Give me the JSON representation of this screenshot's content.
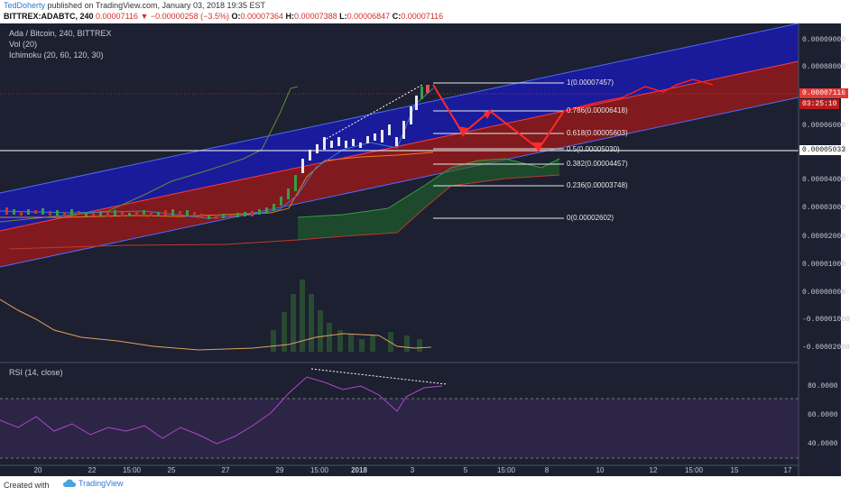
{
  "header": {
    "author": "TedDoherty",
    "published_text": " published on TradingView.com, January 03, 2018 19:35 EST",
    "symbol": "BITTREX:ADABTC, 240",
    "change_text": "−0.00000258 (−3.5%)",
    "ohlc": [
      {
        "k": "O:",
        "v": "0.00007364"
      },
      {
        "k": "H:",
        "v": "0.00007388"
      },
      {
        "k": "L:",
        "v": "0.00006847"
      },
      {
        "k": "C:",
        "v": "0.00007116"
      }
    ],
    "last_value": "0.00007116"
  },
  "legends": {
    "title": "Ada / Bitcoin, 240, BITTREX",
    "vol": "Vol (20)",
    "ichimoku": "Ichimoku (20, 60, 120, 30)",
    "rsi": "RSI (14, close)"
  },
  "price_axis": [
    "0.00009000",
    "0.00008000",
    "0.00006000",
    "0.00004000",
    "0.00003000",
    "0.00002000",
    "0.00001000",
    "0.00000000",
    "-0.00001000",
    "-0.00002000"
  ],
  "rsi_axis": [
    "80.0000",
    "60.0000",
    "40.0000"
  ],
  "price_tags": {
    "last": "0.00007116",
    "timer": "03:25:10",
    "line": "0.00005033"
  },
  "fib_levels": [
    {
      "label": "1(0.00007457)"
    },
    {
      "label": "0.786(0.00006418)"
    },
    {
      "label": "0.618(0.00005603)"
    },
    {
      "label": "0.5(0.00005030)"
    },
    {
      "label": "0.382(0.00004457)"
    },
    {
      "label": "0.236(0.00003748)"
    },
    {
      "label": "0(0.00002602)"
    }
  ],
  "time_axis": [
    "20",
    "22",
    "15:00",
    "25",
    "27",
    "29",
    "15:00",
    "2018",
    "3",
    "5",
    "15:00",
    "8",
    "10",
    "12",
    "15:00",
    "15",
    "17"
  ],
  "footer": {
    "created": "Created with",
    "brand": "TradingView"
  },
  "colors": {
    "background": "#1c2030",
    "channel_blue": "#1a1aa8",
    "channel_red": "#b01818",
    "accent_red": "#ff2a2a",
    "rsi": "#9c27b0"
  }
}
